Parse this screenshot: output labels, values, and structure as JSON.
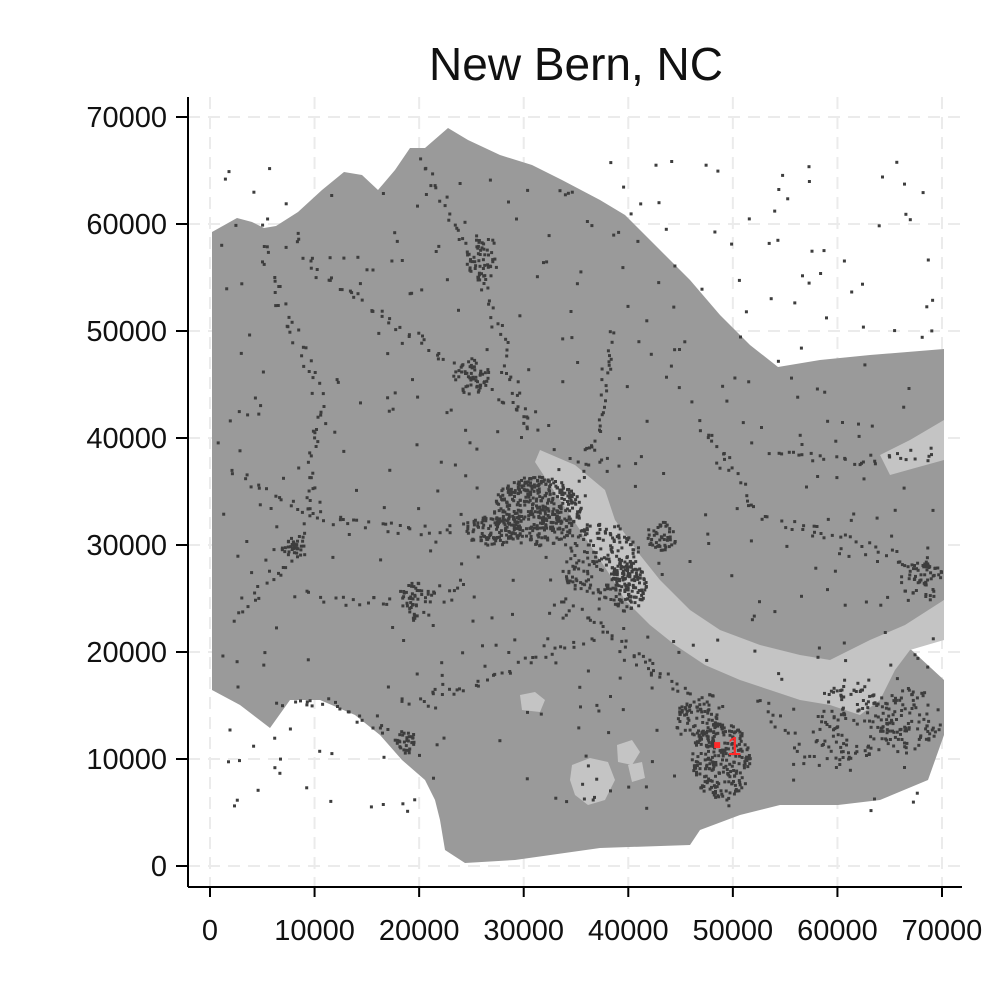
{
  "title": "New Bern, NC",
  "x_ticks": [
    "0",
    "10000",
    "20000",
    "30000",
    "40000",
    "50000",
    "60000",
    "70000"
  ],
  "y_ticks": [
    "0",
    "10000",
    "20000",
    "30000",
    "40000",
    "50000",
    "60000",
    "70000"
  ],
  "chart_data": {
    "type": "map",
    "title": "New Bern, NC",
    "xlim": [
      0,
      70000
    ],
    "ylim": [
      0,
      70000
    ],
    "x_ticks": [
      0,
      10000,
      20000,
      30000,
      40000,
      50000,
      60000,
      70000
    ],
    "y_ticks": [
      0,
      10000,
      20000,
      30000,
      40000,
      50000,
      60000,
      70000
    ],
    "grid": true,
    "markers": [
      {
        "label": "1",
        "x": 48500,
        "y": 11300,
        "color": "#ff2a2a"
      }
    ]
  },
  "colors": {
    "land": "#9a9a9a",
    "water": "#c4c4c4",
    "developed": "#3d3d3d",
    "marker": "#ff2a2a",
    "grid": "#ebebeb"
  }
}
